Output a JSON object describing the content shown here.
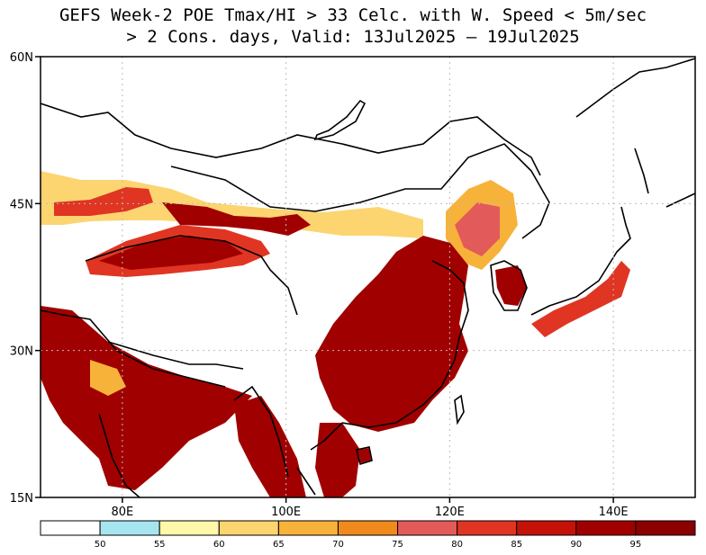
{
  "title_line1": "GEFS Week-2 POE Tmax/HI > 33 Celc. with W. Speed < 5m/sec",
  "title_line2": "> 2 Cons. days, Valid: 13Jul2025 – 19Jul2025",
  "map": {
    "lon_range": [
      70,
      150
    ],
    "lat_range": [
      15,
      60
    ],
    "lon_ticks": [
      {
        "value": 80,
        "label": "80E"
      },
      {
        "value": 100,
        "label": "100E"
      },
      {
        "value": 120,
        "label": "120E"
      },
      {
        "value": 140,
        "label": "140E"
      }
    ],
    "lat_ticks": [
      {
        "value": 60,
        "label": "60N"
      },
      {
        "value": 45,
        "label": "45N"
      },
      {
        "value": 30,
        "label": "30N"
      },
      {
        "value": 15,
        "label": "15N"
      }
    ],
    "grid": true
  },
  "colorbar": {
    "colors": [
      "#ffffff",
      "#a6e6f0",
      "#fff7aa",
      "#fcd571",
      "#f7b23a",
      "#f18a1c",
      "#e35a5a",
      "#e03523",
      "#c41208",
      "#a00000",
      "#8b0000"
    ],
    "labels": [
      "50",
      "55",
      "60",
      "65",
      "70",
      "75",
      "80",
      "85",
      "90",
      "95"
    ]
  }
}
